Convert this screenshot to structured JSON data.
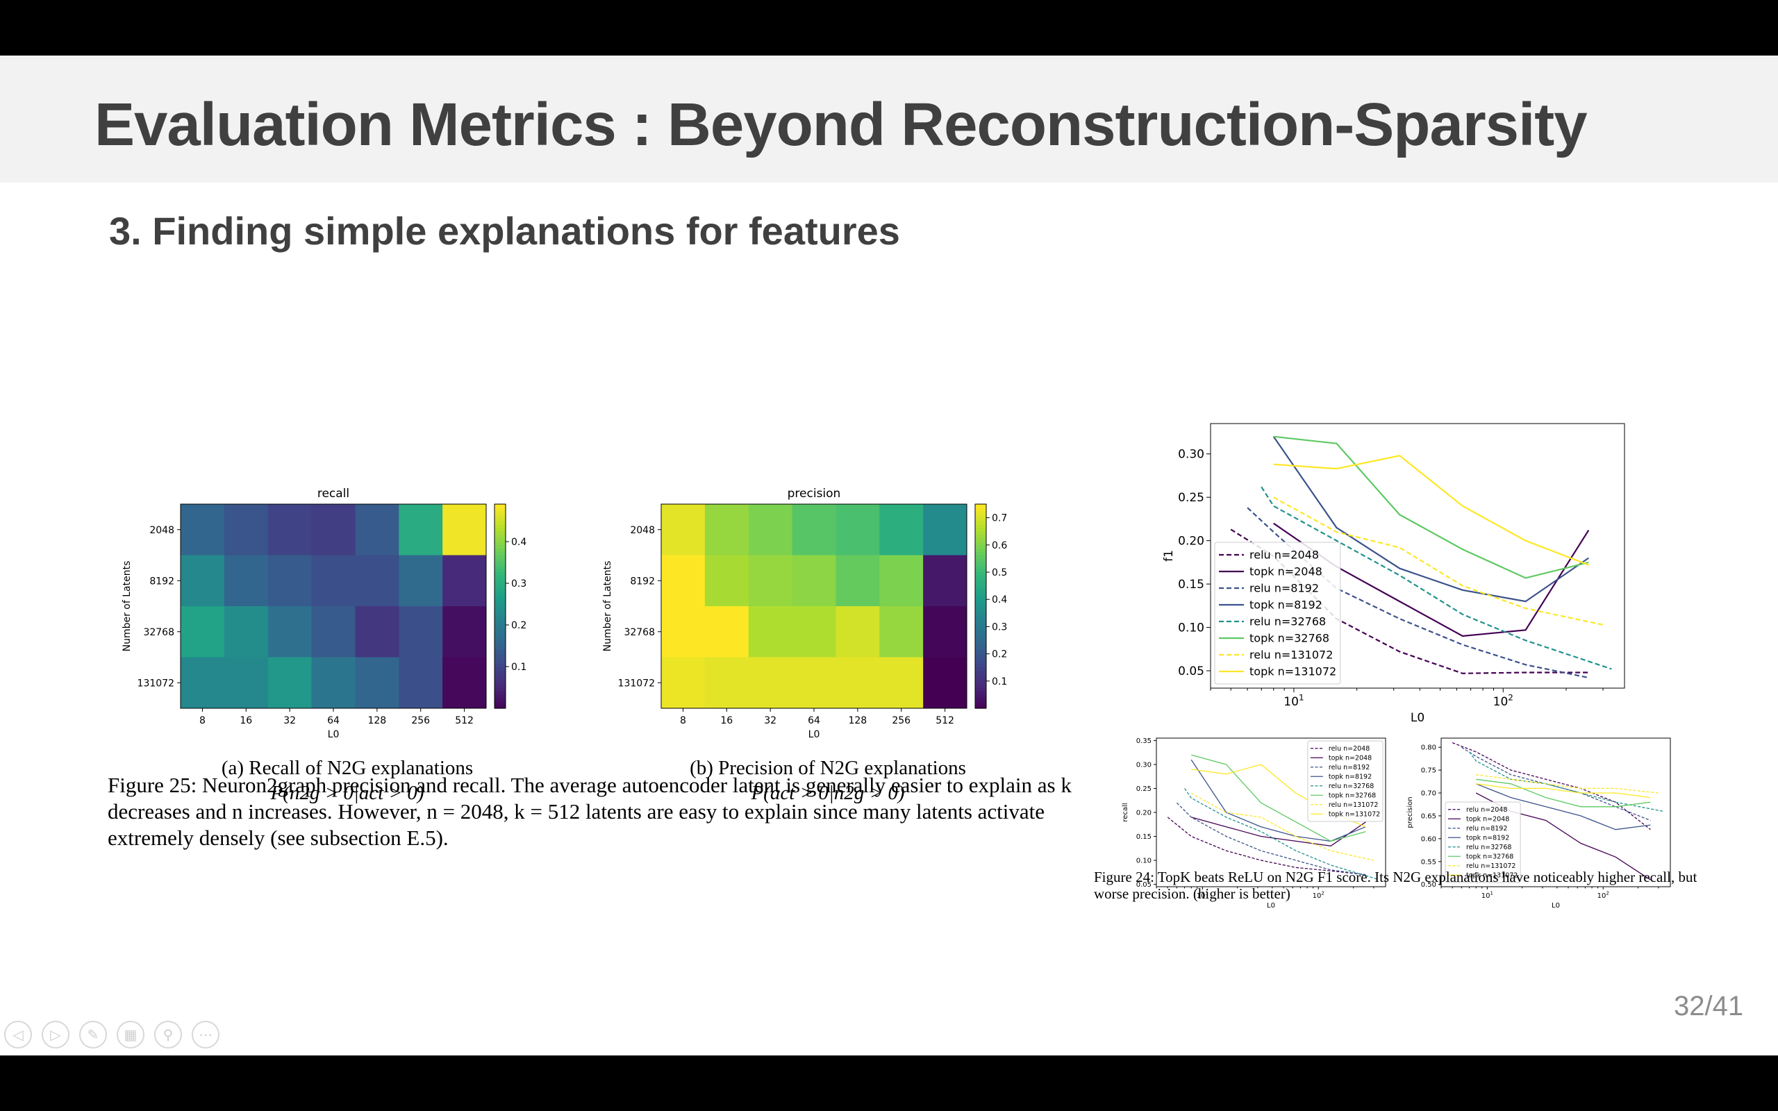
{
  "slide": {
    "title": "Evaluation Metrics : Beyond Reconstruction-Sparsity",
    "subtitle": "3. Finding simple explanations for features",
    "page_number": "32/41"
  },
  "captions": {
    "recall_sub_1": "(a) Recall of N2G explanations",
    "recall_sub_2": "P(n2g > 0|act > 0)",
    "precision_sub_1": "(b) Precision of N2G explanations",
    "precision_sub_2": "P(act > 0|n2g > 0)",
    "figure25": "Figure 25: Neuron2graph precision and recall. The average autoencoder latent is generally easier to explain as k decreases and n increases. However, n = 2048, k = 512 latents are easy to explain since many latents activate extremely densely (see subsection E.5).",
    "figure24": "Figure 24: TopK beats ReLU on N2G F1 score. Its N2G explanations have noticeably higher recall, but worse precision. (higher is better)"
  },
  "nav_icons": [
    "prev-icon",
    "next-icon",
    "pen-icon",
    "grid-icon",
    "zoom-icon",
    "more-icon"
  ],
  "chart_data": [
    {
      "type": "heatmap",
      "title": "recall",
      "xlabel": "L0",
      "ylabel": "Number of Latents",
      "x_categories": [
        "8",
        "16",
        "32",
        "64",
        "128",
        "256",
        "512"
      ],
      "y_categories": [
        "2048",
        "8192",
        "32768",
        "131072"
      ],
      "values": [
        [
          0.16,
          0.13,
          0.1,
          0.09,
          0.14,
          0.3,
          0.48
        ],
        [
          0.23,
          0.16,
          0.14,
          0.12,
          0.12,
          0.17,
          0.06
        ],
        [
          0.28,
          0.24,
          0.18,
          0.14,
          0.08,
          0.12,
          0.02
        ],
        [
          0.23,
          0.23,
          0.26,
          0.19,
          0.16,
          0.12,
          0.01
        ]
      ],
      "colorbar_range": [
        0.0,
        0.49
      ],
      "colorbar_ticks": [
        0.1,
        0.2,
        0.3,
        0.4
      ]
    },
    {
      "type": "heatmap",
      "title": "precision",
      "xlabel": "L0",
      "ylabel": "Number of Latents",
      "x_categories": [
        "8",
        "16",
        "32",
        "64",
        "128",
        "256",
        "512"
      ],
      "y_categories": [
        "2048",
        "8192",
        "32768",
        "131072"
      ],
      "values": [
        [
          0.72,
          0.63,
          0.6,
          0.55,
          0.53,
          0.47,
          0.36
        ],
        [
          0.75,
          0.65,
          0.63,
          0.62,
          0.57,
          0.6,
          0.05
        ],
        [
          0.76,
          0.76,
          0.66,
          0.66,
          0.7,
          0.63,
          0.01
        ],
        [
          0.73,
          0.72,
          0.72,
          0.72,
          0.72,
          0.72,
          0.0
        ]
      ],
      "colorbar_range": [
        0.0,
        0.75
      ],
      "colorbar_ticks": [
        0.1,
        0.2,
        0.3,
        0.4,
        0.5,
        0.6,
        0.7
      ]
    },
    {
      "type": "line",
      "title": "",
      "xlabel": "L0",
      "ylabel": "f1",
      "xscale": "log",
      "xlim": [
        4,
        380
      ],
      "ylim": [
        0.03,
        0.335
      ],
      "x_tick_labels": [
        "10^1",
        "10^2"
      ],
      "y_ticks": [
        0.05,
        0.1,
        0.15,
        0.2,
        0.25,
        0.3
      ],
      "legend_position": "lower-left",
      "series": [
        {
          "name": "relu n=2048",
          "color": "#440154",
          "dashed": true,
          "x": [
            5,
            8,
            16,
            32,
            64,
            128,
            256
          ],
          "y": [
            0.213,
            0.182,
            0.11,
            0.072,
            0.047,
            0.048,
            0.048
          ]
        },
        {
          "name": "topk n=2048",
          "color": "#440154",
          "dashed": false,
          "x": [
            8,
            16,
            32,
            64,
            128,
            256
          ],
          "y": [
            0.22,
            0.17,
            0.13,
            0.09,
            0.097,
            0.212
          ]
        },
        {
          "name": "relu n=8192",
          "color": "#3b528b",
          "dashed": true,
          "x": [
            6,
            8,
            16,
            32,
            64,
            128,
            256
          ],
          "y": [
            0.238,
            0.21,
            0.145,
            0.11,
            0.08,
            0.057,
            0.042
          ]
        },
        {
          "name": "topk n=8192",
          "color": "#3b528b",
          "dashed": false,
          "x": [
            8,
            16,
            32,
            64,
            128,
            256
          ],
          "y": [
            0.32,
            0.215,
            0.168,
            0.143,
            0.13,
            0.18
          ]
        },
        {
          "name": "relu n=32768",
          "color": "#21918c",
          "dashed": true,
          "x": [
            7,
            8,
            16,
            32,
            64,
            128,
            330
          ],
          "y": [
            0.262,
            0.24,
            0.2,
            0.16,
            0.115,
            0.085,
            0.052
          ]
        },
        {
          "name": "topk n=32768",
          "color": "#5ec962",
          "dashed": false,
          "x": [
            8,
            16,
            32,
            64,
            128,
            256
          ],
          "y": [
            0.32,
            0.312,
            0.23,
            0.19,
            0.157,
            0.175
          ]
        },
        {
          "name": "relu n=131072",
          "color": "#fde725",
          "dashed": true,
          "x": [
            8,
            16,
            32,
            64,
            128,
            300
          ],
          "y": [
            0.25,
            0.21,
            0.192,
            0.148,
            0.122,
            0.103
          ]
        },
        {
          "name": "topk n=131072",
          "color": "#fde725",
          "dashed": false,
          "x": [
            8,
            16,
            32,
            64,
            128,
            256
          ],
          "y": [
            0.288,
            0.283,
            0.298,
            0.24,
            0.2,
            0.172
          ]
        }
      ]
    },
    {
      "type": "line",
      "title": "",
      "xlabel": "L0",
      "ylabel": "recall",
      "xscale": "log",
      "xlim": [
        4,
        380
      ],
      "ylim": [
        0.045,
        0.355
      ],
      "x_tick_labels": [
        "10^1",
        "10^2"
      ],
      "y_ticks": [
        0.05,
        0.1,
        0.15,
        0.2,
        0.25,
        0.3,
        0.35
      ],
      "legend_position": "top-right",
      "series": [
        {
          "name": "relu n=2048",
          "color": "#440154",
          "dashed": true,
          "x": [
            5,
            8,
            16,
            32,
            64,
            128,
            256
          ],
          "y": [
            0.19,
            0.15,
            0.12,
            0.1,
            0.085,
            0.078,
            0.07
          ]
        },
        {
          "name": "topk n=2048",
          "color": "#440154",
          "dashed": false,
          "x": [
            8,
            16,
            32,
            64,
            128,
            256
          ],
          "y": [
            0.19,
            0.17,
            0.15,
            0.14,
            0.13,
            0.18
          ]
        },
        {
          "name": "relu n=8192",
          "color": "#3b528b",
          "dashed": true,
          "x": [
            6,
            8,
            16,
            32,
            64,
            128,
            256
          ],
          "y": [
            0.22,
            0.19,
            0.15,
            0.12,
            0.1,
            0.08,
            0.07
          ]
        },
        {
          "name": "topk n=8192",
          "color": "#3b528b",
          "dashed": false,
          "x": [
            8,
            16,
            32,
            64,
            128,
            256
          ],
          "y": [
            0.31,
            0.2,
            0.17,
            0.15,
            0.14,
            0.17
          ]
        },
        {
          "name": "relu n=32768",
          "color": "#21918c",
          "dashed": true,
          "x": [
            7,
            8,
            16,
            32,
            64,
            128,
            330
          ],
          "y": [
            0.25,
            0.23,
            0.19,
            0.16,
            0.12,
            0.09,
            0.06
          ]
        },
        {
          "name": "topk n=32768",
          "color": "#5ec962",
          "dashed": false,
          "x": [
            8,
            16,
            32,
            64,
            128,
            256
          ],
          "y": [
            0.32,
            0.3,
            0.22,
            0.18,
            0.14,
            0.16
          ]
        },
        {
          "name": "relu n=131072",
          "color": "#fde725",
          "dashed": true,
          "x": [
            8,
            16,
            32,
            64,
            128,
            300
          ],
          "y": [
            0.24,
            0.2,
            0.19,
            0.15,
            0.12,
            0.1
          ]
        },
        {
          "name": "topk n=131072",
          "color": "#fde725",
          "dashed": false,
          "x": [
            8,
            16,
            32,
            64,
            128,
            256
          ],
          "y": [
            0.29,
            0.28,
            0.3,
            0.24,
            0.2,
            0.17
          ]
        }
      ]
    },
    {
      "type": "line",
      "title": "",
      "xlabel": "L0",
      "ylabel": "precision",
      "xscale": "log",
      "xlim": [
        4,
        380
      ],
      "ylim": [
        0.495,
        0.82
      ],
      "x_tick_labels": [
        "10^1",
        "10^2"
      ],
      "y_ticks": [
        0.5,
        0.55,
        0.6,
        0.65,
        0.7,
        0.75,
        0.8
      ],
      "legend_position": "lower-left",
      "series": [
        {
          "name": "relu n=2048",
          "color": "#440154",
          "dashed": true,
          "x": [
            5,
            8,
            16,
            32,
            64,
            128,
            256
          ],
          "y": [
            0.81,
            0.79,
            0.75,
            0.73,
            0.71,
            0.68,
            0.62
          ]
        },
        {
          "name": "topk n=2048",
          "color": "#440154",
          "dashed": false,
          "x": [
            8,
            16,
            32,
            64,
            128,
            256
          ],
          "y": [
            0.7,
            0.66,
            0.64,
            0.59,
            0.56,
            0.51
          ]
        },
        {
          "name": "relu n=8192",
          "color": "#3b528b",
          "dashed": true,
          "x": [
            6,
            8,
            16,
            32,
            64,
            128,
            256
          ],
          "y": [
            0.8,
            0.78,
            0.74,
            0.72,
            0.7,
            0.67,
            0.64
          ]
        },
        {
          "name": "topk n=8192",
          "color": "#3b528b",
          "dashed": false,
          "x": [
            8,
            16,
            32,
            64,
            128,
            256
          ],
          "y": [
            0.72,
            0.69,
            0.67,
            0.65,
            0.62,
            0.63
          ]
        },
        {
          "name": "relu n=32768",
          "color": "#21918c",
          "dashed": true,
          "x": [
            7,
            8,
            16,
            32,
            64,
            128,
            330
          ],
          "y": [
            0.79,
            0.77,
            0.73,
            0.72,
            0.7,
            0.68,
            0.66
          ]
        },
        {
          "name": "topk n=32768",
          "color": "#5ec962",
          "dashed": false,
          "x": [
            8,
            16,
            32,
            64,
            128,
            256
          ],
          "y": [
            0.73,
            0.72,
            0.69,
            0.67,
            0.67,
            0.68
          ]
        },
        {
          "name": "relu n=131072",
          "color": "#fde725",
          "dashed": true,
          "x": [
            8,
            16,
            32,
            64,
            128,
            300
          ],
          "y": [
            0.74,
            0.73,
            0.72,
            0.71,
            0.71,
            0.7
          ]
        },
        {
          "name": "topk n=131072",
          "color": "#fde725",
          "dashed": false,
          "x": [
            8,
            16,
            32,
            64,
            128,
            256
          ],
          "y": [
            0.72,
            0.71,
            0.71,
            0.7,
            0.7,
            0.69
          ]
        }
      ]
    }
  ]
}
